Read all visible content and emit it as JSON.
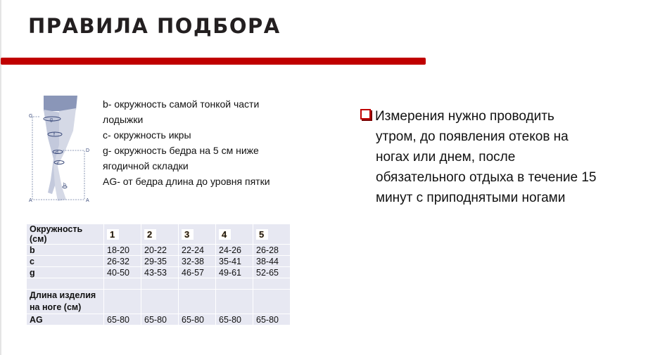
{
  "title": "ПРАВИЛА ПОДБОРА",
  "figure": {
    "labels": [
      "G",
      "g",
      "f",
      "d",
      "D",
      "c",
      "b",
      "A",
      "A"
    ]
  },
  "description": [
    "b- окружность самой тонкой части",
    "лодыжки",
    "c- окружность икры",
    "g- окружность бедра на 5 см ниже",
    "ягодичной складки",
    "AG- от бедра длина до уровня пятки"
  ],
  "table": {
    "header": [
      "Окружность (см)",
      "1",
      "2",
      "3",
      "4",
      "5"
    ],
    "rows": [
      [
        "b",
        "18-20",
        "20-22",
        "22-24",
        "24-26",
        "26-28"
      ],
      [
        "c",
        "26-32",
        "29-35",
        "32-38",
        "35-41",
        "38-44"
      ],
      [
        "g",
        "40-50",
        "43-53",
        "46-57",
        "49-61",
        "52-65"
      ],
      [
        "",
        "",
        "",
        "",
        "",
        ""
      ],
      [
        "Длина изделия на ноге (см)",
        "",
        "",
        "",
        "",
        ""
      ],
      [
        "AG",
        "65-80",
        "65-80",
        "65-80",
        "65-80",
        "65-80"
      ]
    ]
  },
  "note": {
    "icon": "checkbox-bullet-icon",
    "lines": [
      "Измерения нужно проводить",
      "утром, до появления отеков на",
      "ногах или днем, после",
      "обязательного отдыха в течение 15",
      "минут с приподнятыми ногами"
    ]
  },
  "colors": {
    "accent": "#c00000",
    "table_bg": "#e7e8f2"
  }
}
